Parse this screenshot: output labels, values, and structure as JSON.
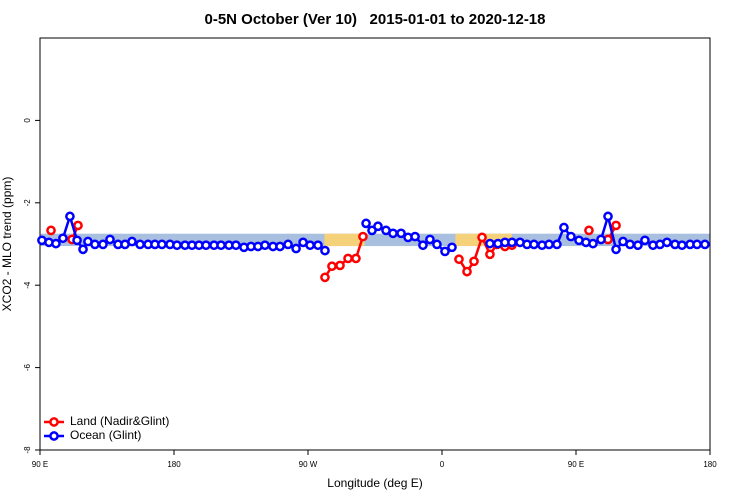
{
  "chart_data": {
    "type": "line",
    "title": "0-5N October (Ver 10)   2015-01-01 to 2020-12-18",
    "x_label": "Longitude (deg E)",
    "y_label": "XCO2 - MLO trend (ppm)",
    "xlim": [
      90,
      540
    ],
    "ylim": [
      -8,
      2
    ],
    "xticks": [
      {
        "value": 90,
        "label": "90 E"
      },
      180,
      {
        "value": 270,
        "label": "90 W"
      },
      {
        "value": 360,
        "label": "0"
      },
      {
        "value": 450,
        "label": "90 E"
      },
      {
        "value": 540,
        "label": "180"
      }
    ],
    "yticks": [
      0,
      -2,
      -4,
      -6,
      -8
    ],
    "band": {
      "y": [
        -3.05,
        -2.75
      ],
      "color": "#a9bfe0",
      "land_color": "#f5d27a",
      "land_spans": [
        [
          281,
          308
        ],
        [
          369,
          407
        ]
      ]
    },
    "legend": "bottom-left",
    "series": [
      {
        "name": "Land (Nadir&Glint)",
        "color": "#ff0000",
        "x": [
          97.4,
          104,
          111.5,
          115.5,
          200,
          281.4,
          286.1,
          291.5,
          296.9,
          302.2,
          306.9,
          340,
          371.4,
          376.8,
          381.5,
          386.9,
          392.2,
          396.9,
          402.3,
          407,
          430,
          458.7,
          465,
          471.5,
          476.9
        ],
        "values": [
          -2.67,
          null,
          -2.89,
          -2.55,
          null,
          -3.81,
          -3.54,
          -3.52,
          -3.35,
          -3.35,
          -2.82,
          null,
          -3.37,
          -3.67,
          -3.42,
          -2.84,
          -3.25,
          -3.01,
          -3.06,
          -3.03,
          null,
          -2.67,
          null,
          -2.89,
          -2.55
        ]
      },
      {
        "name": "Ocean (Glint)",
        "color": "#0000ff",
        "x": [
          91.3,
          96.0,
          100.7,
          105.4,
          110.1,
          114.9,
          118.9,
          122.2,
          126.9,
          132.3,
          137.0,
          142.4,
          147.1,
          151.8,
          157.2,
          162.6,
          167.2,
          171.9,
          177.3,
          182.0,
          187.4,
          192.1,
          196.8,
          201.5,
          206.9,
          211.6,
          216.9,
          221.6,
          227.0,
          231.7,
          236.4,
          241.1,
          246.5,
          251.2,
          256.6,
          262.0,
          266.7,
          271.4,
          276.7,
          281.4,
          300,
          309.0,
          313.0,
          317.0,
          322.4,
          327.1,
          332.5,
          337.2,
          341.9,
          347.2,
          351.9,
          356.6,
          362.0,
          366.7,
          380,
          392.2,
          397.6,
          402.3,
          407.0,
          412.4,
          417.1,
          421.8,
          427.2,
          431.9,
          437.2,
          441.9,
          446.6,
          452.0,
          456.7,
          461.4,
          466.8,
          471.5,
          476.9,
          481.6,
          486.3,
          491.6,
          496.3,
          501.7,
          506.4,
          511.1,
          516.5,
          521.2,
          526.6,
          531.3,
          536.6
        ],
        "values": [
          -2.91,
          -2.96,
          -2.99,
          -2.86,
          -2.33,
          -2.91,
          -3.13,
          -2.94,
          -3.01,
          -3.01,
          -2.89,
          -3.01,
          -3.01,
          -2.94,
          -3.01,
          -3.01,
          -3.01,
          -3.01,
          -3.01,
          -3.03,
          -3.03,
          -3.03,
          -3.03,
          -3.03,
          -3.03,
          -3.03,
          -3.03,
          -3.03,
          -3.08,
          -3.06,
          -3.06,
          -3.03,
          -3.06,
          -3.06,
          -3.01,
          -3.11,
          -2.96,
          -3.03,
          -3.03,
          -3.16,
          null,
          -2.5,
          -2.67,
          -2.57,
          -2.67,
          -2.74,
          -2.74,
          -2.84,
          -2.82,
          -3.03,
          -2.89,
          -3.01,
          -3.18,
          -3.08,
          null,
          -2.99,
          -2.99,
          -2.96,
          -2.96,
          -2.96,
          -3.01,
          -3.01,
          -3.03,
          -3.01,
          -3.01,
          -2.6,
          -2.82,
          -2.91,
          -2.96,
          -2.99,
          -2.89,
          -2.33,
          -3.13,
          -2.94,
          -3.01,
          -3.03,
          -2.91,
          -3.03,
          -3.01,
          -2.96,
          -3.01,
          -3.03,
          -3.01,
          -3.01,
          -3.01
        ]
      }
    ]
  }
}
